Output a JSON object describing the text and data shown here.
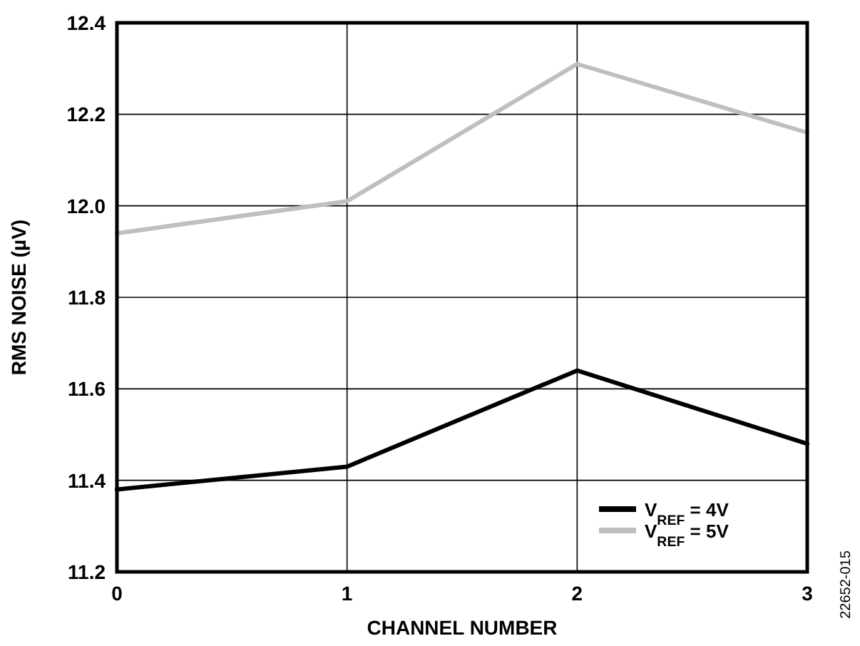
{
  "chart_data": {
    "type": "line",
    "xlabel": "CHANNEL NUMBER",
    "ylabel": "RMS NOISE (µV)",
    "x": [
      0,
      1,
      2,
      3
    ],
    "xlim": [
      0,
      3
    ],
    "xticks": [
      0,
      1,
      2,
      3
    ],
    "ylim": [
      11.2,
      12.4
    ],
    "yticks": [
      11.2,
      11.4,
      11.6,
      11.8,
      {
        "value": 12,
        "label": "12.0"
      },
      12.2,
      12.4
    ],
    "series": [
      {
        "name": "V$_{REF}$ = 4V",
        "color": "#000000",
        "values": [
          11.38,
          11.43,
          11.64,
          11.48
        ]
      },
      {
        "name": "V$_{REF}$ = 5V",
        "color": "#bfbfbf",
        "values": [
          11.94,
          12.01,
          12.31,
          12.16
        ]
      }
    ],
    "grid": true,
    "legend": "bottom right",
    "marker": "none",
    "line_style": "solid",
    "annotations": [
      "22652-015"
    ]
  }
}
